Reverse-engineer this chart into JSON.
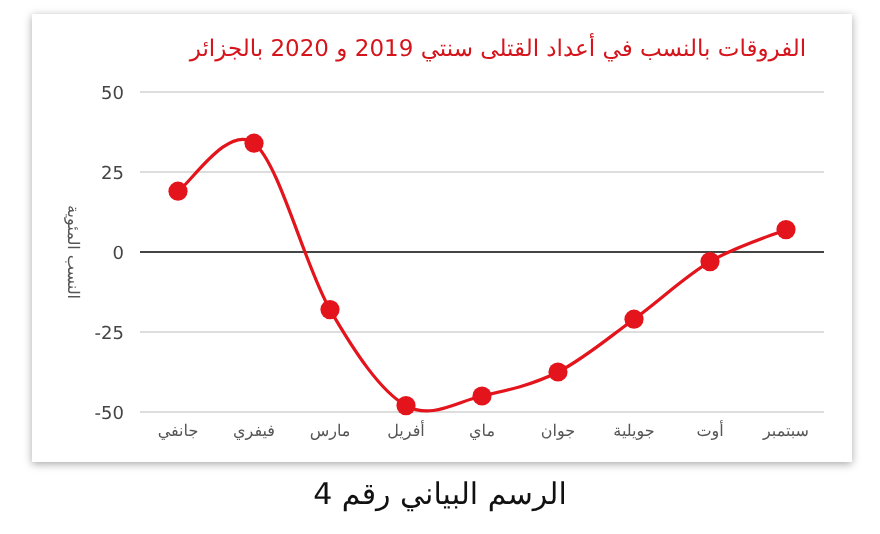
{
  "chart_data": {
    "type": "line",
    "title": "الفروقات بالنسب في أعداد القتلى سنتي 2019 و 2020 بالجزائر",
    "ylabel": "النسب المئوية",
    "categories": [
      "جانفي",
      "فيفري",
      "مارس",
      "أفريل",
      "ماي",
      "جوان",
      "جويلية",
      "أوت",
      "سبتمبر"
    ],
    "series": [
      {
        "color": "#e3141c",
        "values": [
          19,
          34,
          -18,
          -48,
          -45,
          -37.5,
          -21,
          -3,
          7
        ]
      }
    ],
    "ylim": [
      -50,
      50
    ],
    "yticks": [
      -50,
      -25,
      0,
      25,
      50
    ],
    "grid": "y",
    "marker": "circle",
    "line_style": "solid",
    "annotations": [
      "الرسم البياني رقم 4"
    ]
  }
}
